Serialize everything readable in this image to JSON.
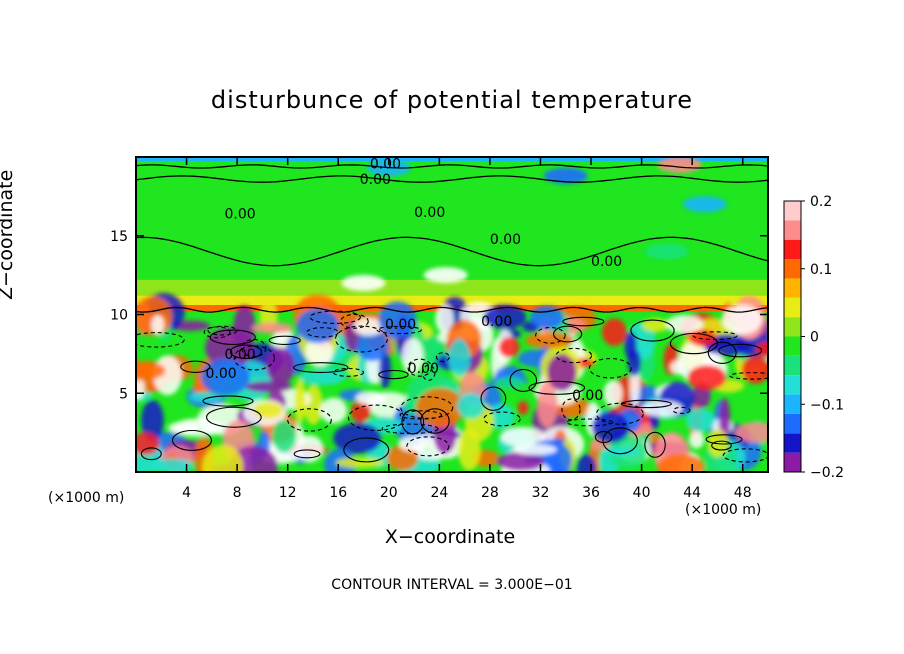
{
  "chart_data": {
    "type": "heatmap",
    "title": "disturbunce of potential temperature",
    "xlabel": "X−coordinate",
    "ylabel": "Z−coordinate",
    "x_unit_label": "(×1000 m)",
    "x_ticks": [
      4,
      8,
      12,
      16,
      20,
      24,
      28,
      32,
      36,
      40,
      44,
      48
    ],
    "y_ticks": [
      5,
      10,
      15
    ],
    "xlim": [
      0,
      50
    ],
    "ylim": [
      0,
      20
    ],
    "colorbar": {
      "ticks": [
        0.2,
        0.1,
        0,
        -0.1,
        -0.2
      ],
      "tick_labels": [
        "0.2",
        "0.1",
        "0",
        "−0.1",
        "−0.2"
      ],
      "range": [
        -0.2,
        0.2
      ],
      "colors": [
        "#8b1aa6",
        "#1515c8",
        "#1e6cff",
        "#1ab4ff",
        "#22e0d8",
        "#19e27a",
        "#1fe61f",
        "#8ee61a",
        "#e6ec14",
        "#ffb400",
        "#ff6a00",
        "#ff1a1a",
        "#ff8c8c",
        "#ffcccc"
      ]
    },
    "contour_labels": [
      "0.00",
      "0.00",
      "0.00",
      "0.00",
      "0.00",
      "0.00",
      "0.00",
      "0.00",
      "0.00",
      "0.00",
      "0.00",
      "0.00"
    ],
    "footer": "CONTOUR INTERVAL = 3.000E−01"
  }
}
